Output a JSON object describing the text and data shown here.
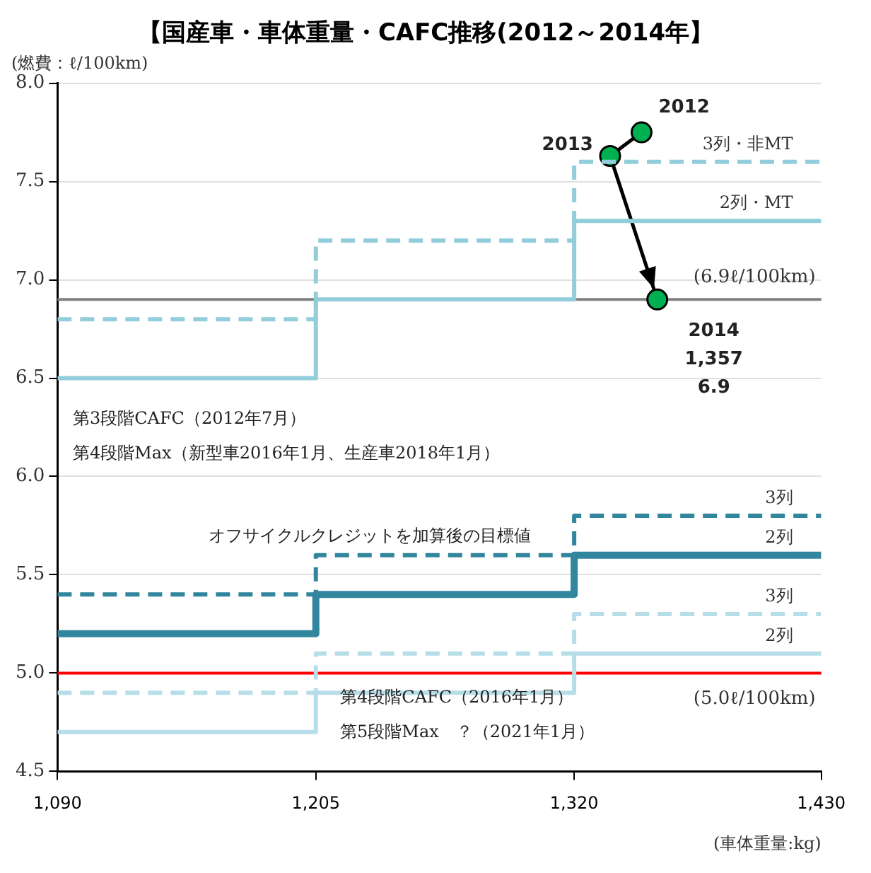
{
  "chart_data": {
    "type": "step",
    "title": "【国産車・車体重量・CAFC推移(2012～2014年】",
    "xlabel": "(車体重量:kg)",
    "ylabel": "(燃費：ℓ/100km)",
    "xlim": [
      1090,
      1430
    ],
    "xticks": [
      {
        "value": 1090,
        "label": "1,090"
      },
      {
        "value": 1205,
        "label": "1,205"
      },
      {
        "value": 1320,
        "label": "1,320"
      },
      {
        "value": 1430,
        "label": "1,430"
      }
    ],
    "ylim": [
      4.5,
      8.0
    ],
    "yticks": [
      4.5,
      {
        "value": 5,
        "label": "5.0"
      },
      5.5,
      {
        "value": 6,
        "label": "6.0"
      },
      6.5,
      {
        "value": 7,
        "label": "7.0"
      },
      7.5,
      {
        "value": 8,
        "label": "8.0"
      }
    ],
    "grid": "y",
    "legend": false,
    "series": [
      {
        "name": "3列・非MT",
        "color": "#92cddc",
        "line_style": "dashed",
        "x": [
          1090,
          1205,
          1320,
          1430
        ],
        "values": [
          6.8,
          7.2,
          7.6,
          7.6
        ]
      },
      {
        "name": "2列・MT",
        "color": "#92cddc",
        "line_style": "solid",
        "x": [
          1090,
          1205,
          1320,
          1430
        ],
        "values": [
          6.5,
          6.9,
          7.3,
          7.3
        ]
      },
      {
        "name": "3列",
        "color": "#31859c",
        "line_style": "dashed",
        "x": [
          1090,
          1205,
          1320,
          1430
        ],
        "values": [
          5.4,
          5.6,
          5.8,
          5.8
        ]
      },
      {
        "name": "2列",
        "color": "#31859c",
        "line_style": "solid",
        "x": [
          1090,
          1205,
          1320,
          1430
        ],
        "values": [
          5.2,
          5.4,
          5.6,
          5.6
        ]
      },
      {
        "name": "3列",
        "color": "#b7dee8",
        "line_style": "dashed",
        "x": [
          1090,
          1205,
          1320,
          1430
        ],
        "values": [
          4.9,
          5.1,
          5.3,
          5.3
        ]
      },
      {
        "name": "2列",
        "color": "#b7dee8",
        "line_style": "solid",
        "x": [
          1090,
          1205,
          1320,
          1430
        ],
        "values": [
          4.7,
          4.9,
          5.1,
          5.1
        ]
      },
      {
        "type": "line",
        "color": "#00b050",
        "marker": "circle",
        "x": [
          1350,
          1336,
          1357
        ],
        "values": [
          7.75,
          7.63,
          6.9
        ]
      }
    ],
    "ref_lines": [
      {
        "axis": "y",
        "value": 6.9,
        "label": "(6.9ℓ/100km)",
        "color": "#808080"
      },
      {
        "axis": "y",
        "value": 5.0,
        "label": "(5.0ℓ/100km)",
        "color": "#ff0000"
      }
    ],
    "annotations": [
      "第3段階CAFC（2012年7月）",
      "第4段階Max（新型車2016年1月、生産車2018年1月）",
      "オフサイクルクレジットを加算後の目標値",
      "第4段階CAFC（2016年1月）",
      "第5段階Max　？（2021年1月）",
      {
        "text": "2012",
        "x": 1350,
        "y": 7.75
      },
      {
        "text": "2013",
        "x": 1336,
        "y": 7.63
      },
      {
        "text": "2014\n1,357\n6.9",
        "x": 1357,
        "y": 6.9
      }
    ]
  }
}
